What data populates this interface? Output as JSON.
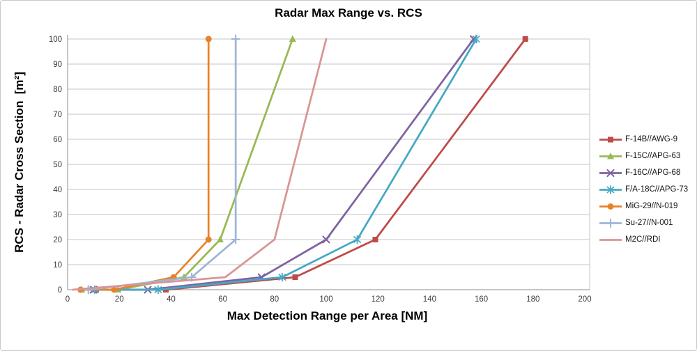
{
  "chart_data": {
    "type": "line",
    "title": "Radar Max Range vs. RCS",
    "xlabel": "Max Detection Range per Area [NM]",
    "ylabel": "RCS - Radar Cross Section  [m²]",
    "xlim": [
      0,
      200
    ],
    "ylim": [
      0,
      100
    ],
    "xticks": [
      0,
      20,
      40,
      60,
      80,
      100,
      120,
      140,
      160,
      180,
      200
    ],
    "yticks": [
      0,
      10,
      20,
      30,
      40,
      50,
      60,
      70,
      80,
      90,
      100
    ],
    "grid": "horizontal-only",
    "legend_position": "right-middle",
    "gridline_color": "#c6c6c6",
    "axis_color": "#8c8c8c",
    "tick_label_color": "#3b3b3b",
    "series": [
      {
        "name": "F-14B//AWG-9",
        "color": "#be4b48",
        "marker": "square",
        "points": [
          [
            11,
            0
          ],
          [
            38,
            0
          ],
          [
            88,
            5
          ],
          [
            119,
            20
          ],
          [
            177,
            100
          ]
        ]
      },
      {
        "name": "F-15C//APG-63",
        "color": "#98b954",
        "marker": "triangle-up",
        "points": [
          [
            5.5,
            0
          ],
          [
            19.5,
            0
          ],
          [
            45,
            5
          ],
          [
            59,
            20
          ],
          [
            87,
            100
          ]
        ]
      },
      {
        "name": "F-16C//APG-68",
        "color": "#7e63a1",
        "marker": "x",
        "points": [
          [
            10,
            0
          ],
          [
            31,
            0
          ],
          [
            75,
            5
          ],
          [
            100,
            20
          ],
          [
            157,
            100
          ]
        ]
      },
      {
        "name": "F/A-18C//APG-73",
        "color": "#45a9c5",
        "marker": "asterisk",
        "points": [
          [
            10.5,
            0
          ],
          [
            35,
            0
          ],
          [
            83,
            5
          ],
          [
            112,
            20
          ],
          [
            158,
            100
          ]
        ]
      },
      {
        "name": "MiG-29//N-019",
        "color": "#e8822a",
        "marker": "circle",
        "points": [
          [
            5,
            0
          ],
          [
            18,
            0
          ],
          [
            41,
            5
          ],
          [
            54.5,
            20
          ],
          [
            54.5,
            100
          ]
        ]
      },
      {
        "name": "Su-27//N-001",
        "color": "#9eb4d8",
        "marker": "plus",
        "points": [
          [
            8,
            0
          ],
          [
            48,
            5
          ],
          [
            65,
            20
          ],
          [
            65,
            100
          ]
        ]
      },
      {
        "name": "M2C//RDI",
        "color": "#d99593",
        "marker": "none",
        "points": [
          [
            2,
            0
          ],
          [
            61,
            5
          ],
          [
            80,
            20
          ],
          [
            100,
            100
          ]
        ]
      }
    ]
  }
}
